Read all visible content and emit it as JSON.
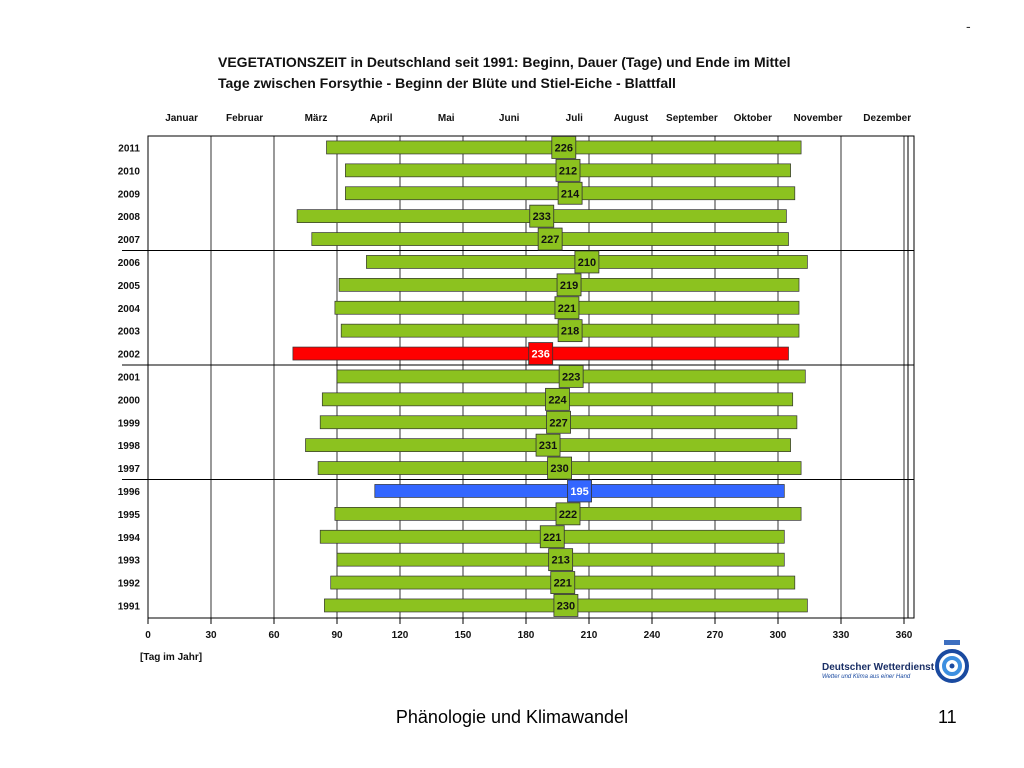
{
  "chart_data": {
    "type": "bar",
    "title": "VEGETATIONSZEIT in Deutschland seit 1991: Beginn, Dauer (Tage) und Ende im Mittel",
    "subtitle": "Tage zwischen Forsythie - Beginn der Blüte und Stiel-Eiche - Blattfall",
    "xlabel": "[Tag im Jahr]",
    "ylabel": "",
    "xlim": [
      0,
      365
    ],
    "x_ticks": [
      0,
      30,
      60,
      90,
      120,
      150,
      180,
      210,
      240,
      270,
      300,
      330,
      360
    ],
    "months": [
      {
        "label": "Januar",
        "mid": 16
      },
      {
        "label": "Februar",
        "mid": 46
      },
      {
        "label": "März",
        "mid": 80
      },
      {
        "label": "April",
        "mid": 111
      },
      {
        "label": "Mai",
        "mid": 142
      },
      {
        "label": "Juni",
        "mid": 172
      },
      {
        "label": "Juli",
        "mid": 203
      },
      {
        "label": "August",
        "mid": 230
      },
      {
        "label": "September",
        "mid": 259
      },
      {
        "label": "Oktober",
        "mid": 288
      },
      {
        "label": "November",
        "mid": 319
      },
      {
        "label": "Dezember",
        "mid": 352
      }
    ],
    "grid": true,
    "orientation": "horizontal",
    "colors": {
      "normal": "#8cc21f",
      "longest": "#ff0000",
      "shortest": "#3366ff"
    },
    "series": [
      {
        "year": "2011",
        "start": 85,
        "end": 311,
        "duration": "226",
        "highlight": "normal"
      },
      {
        "year": "2010",
        "start": 94,
        "end": 306,
        "duration": "212",
        "highlight": "normal"
      },
      {
        "year": "2009",
        "start": 94,
        "end": 308,
        "duration": "214",
        "highlight": "normal"
      },
      {
        "year": "2008",
        "start": 71,
        "end": 304,
        "duration": "233",
        "highlight": "normal"
      },
      {
        "year": "2007",
        "start": 78,
        "end": 305,
        "duration": "227",
        "highlight": "normal"
      },
      {
        "year": "2006",
        "start": 104,
        "end": 314,
        "duration": "210",
        "highlight": "normal"
      },
      {
        "year": "2005",
        "start": 91,
        "end": 310,
        "duration": "219",
        "highlight": "normal"
      },
      {
        "year": "2004",
        "start": 89,
        "end": 310,
        "duration": "221",
        "highlight": "normal"
      },
      {
        "year": "2003",
        "start": 92,
        "end": 310,
        "duration": "218",
        "highlight": "normal"
      },
      {
        "year": "2002",
        "start": 69,
        "end": 305,
        "duration": "236",
        "highlight": "longest"
      },
      {
        "year": "2001",
        "start": 90,
        "end": 313,
        "duration": "223",
        "highlight": "normal"
      },
      {
        "year": "2000",
        "start": 83,
        "end": 307,
        "duration": "224",
        "highlight": "normal"
      },
      {
        "year": "1999",
        "start": 82,
        "end": 309,
        "duration": "227",
        "highlight": "normal"
      },
      {
        "year": "1998",
        "start": 75,
        "end": 306,
        "duration": "231",
        "highlight": "normal"
      },
      {
        "year": "1997",
        "start": 81,
        "end": 311,
        "duration": "230",
        "highlight": "normal"
      },
      {
        "year": "1996",
        "start": 108,
        "end": 303,
        "duration": "195",
        "highlight": "shortest"
      },
      {
        "year": "1995",
        "start": 89,
        "end": 311,
        "duration": "222",
        "highlight": "normal"
      },
      {
        "year": "1994",
        "start": 82,
        "end": 303,
        "duration": "221",
        "highlight": "normal"
      },
      {
        "year": "1993",
        "start": 90,
        "end": 303,
        "duration": "213",
        "highlight": "normal"
      },
      {
        "year": "1992",
        "start": 87,
        "end": 308,
        "duration": "221",
        "highlight": "normal"
      },
      {
        "year": "1991",
        "start": 84,
        "end": 314,
        "duration": "230",
        "highlight": "normal"
      }
    ]
  },
  "slide": {
    "dash": "-",
    "footer": "Phänologie und Klimawandel",
    "page_number": "11"
  },
  "logo": {
    "name": "Deutscher Wetterdienst",
    "tagline": "Wetter und Klima aus einer Hand"
  }
}
